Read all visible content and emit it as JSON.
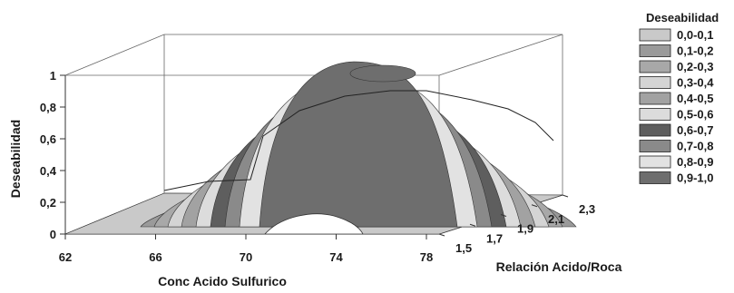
{
  "chart_data": {
    "type": "surface3d",
    "zlabel": "Deseabilidad",
    "xlabel": "Conc Acido Sulfurico",
    "ylabel": "Relación Acido/Roca",
    "x_ticks": [
      "62",
      "66",
      "70",
      "74",
      "78"
    ],
    "y_ticks": [
      "1,5",
      "1,7",
      "1,9",
      "2,1",
      "2,3"
    ],
    "z_ticks": [
      "0",
      "0,2",
      "0,4",
      "0,6",
      "0,8",
      "1"
    ],
    "xlim": [
      62,
      78
    ],
    "ylim": [
      1.5,
      2.3
    ],
    "zlim": [
      0,
      1
    ],
    "legend_title": "Deseabilidad",
    "legend_placement": "right",
    "legend": [
      {
        "label": "0,0-0,1",
        "color": "#c9c9c9"
      },
      {
        "label": "0,1-0,2",
        "color": "#9a9a9a"
      },
      {
        "label": "0,2-0,3",
        "color": "#a8a8a8"
      },
      {
        "label": "0,3-0,4",
        "color": "#d4d4d4"
      },
      {
        "label": "0,4-0,5",
        "color": "#a2a2a2"
      },
      {
        "label": "0,5-0,6",
        "color": "#dcdcdc"
      },
      {
        "label": "0,6-0,7",
        "color": "#5e5e5e"
      },
      {
        "label": "0,7-0,8",
        "color": "#8a8a8a"
      },
      {
        "label": "0,8-0,9",
        "color": "#e2e2e2"
      },
      {
        "label": "0,9-1,0",
        "color": "#6e6e6e"
      }
    ],
    "surface_peak": {
      "x": 73,
      "y": 2.2,
      "z": 0.95
    }
  }
}
